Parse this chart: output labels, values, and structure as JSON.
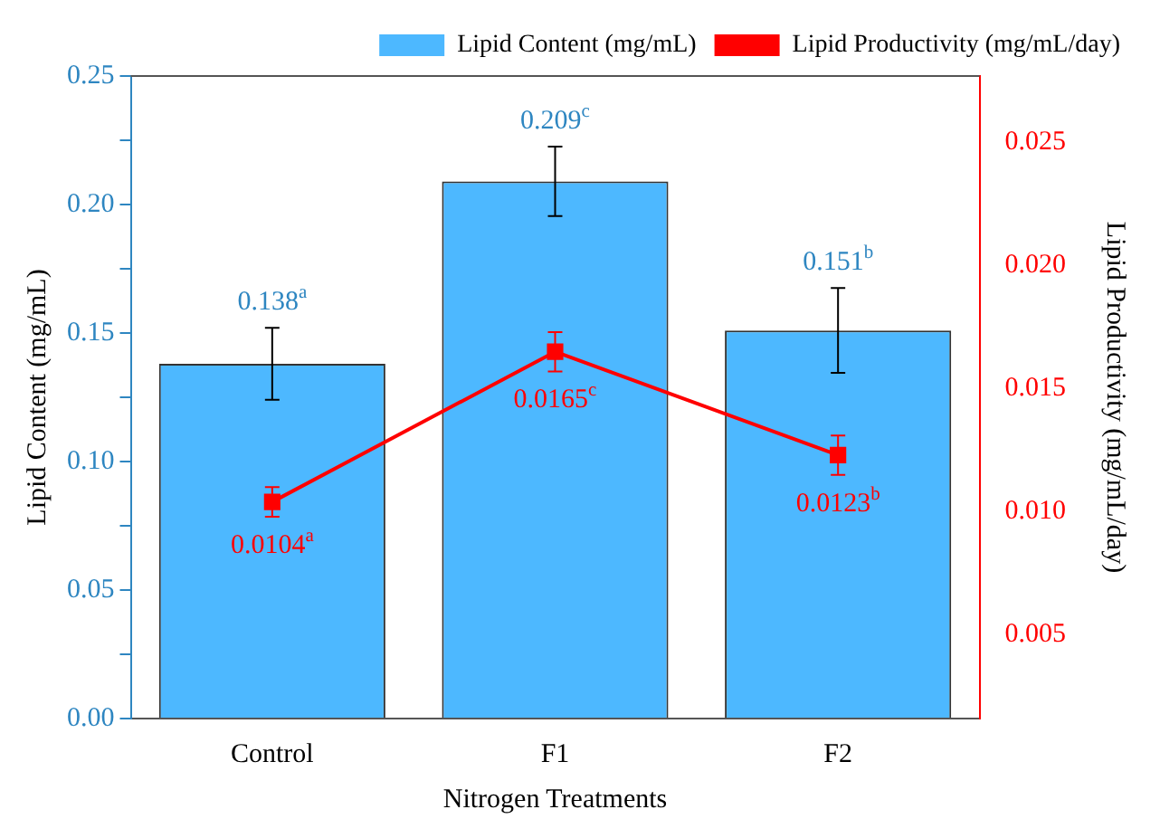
{
  "chart_data": {
    "type": "bar",
    "xlabel": "Nitrogen Treatments",
    "ylabel": "Lipid Content (mg/mL)",
    "y2label": "Lipid Productivity (mg/mL/day)",
    "categories": [
      "Control",
      "F1",
      "F2"
    ],
    "series": [
      {
        "name": "Lipid Content (mg/mL)",
        "color": "#4db8ff",
        "values": [
          0.138,
          0.209,
          0.151
        ],
        "errors": [
          0.014,
          0.0135,
          0.0165
        ],
        "value_labels": [
          "0.138$^{a}$",
          "0.209$^{c}$",
          "0.151$^{b}$"
        ]
      },
      {
        "name": "Lipid Productivity (mg/mL/day)",
        "type": "line",
        "axis": "y2",
        "color": "#ff0000",
        "marker": "square",
        "values": [
          0.0104,
          0.0165,
          0.0123
        ],
        "errors": [
          0.0006,
          0.0008,
          0.0008
        ],
        "value_labels": [
          "0.0104$^{a}$",
          "0.0165$^{c}$",
          "0.0123$^{b}$"
        ]
      }
    ],
    "ylim": [
      0,
      0.25
    ],
    "yticks": [
      {
        "value": 0,
        "label": "0.00"
      },
      {
        "value": 0.025,
        "label": null
      },
      {
        "value": 0.05,
        "label": "0.05"
      },
      {
        "value": 0.075,
        "label": null
      },
      {
        "value": 0.1,
        "label": "0.10"
      },
      {
        "value": 0.125,
        "label": null
      },
      {
        "value": 0.15,
        "label": "0.15"
      },
      {
        "value": 0.175,
        "label": null
      },
      {
        "value": 0.2,
        "label": "0.20"
      },
      {
        "value": 0.225,
        "label": null
      },
      {
        "value": 0.25,
        "label": "0.25"
      }
    ],
    "y2lim": [
      0.0016,
      0.0277
    ],
    "y2ticks": [
      0.005,
      {
        "value": 0.01,
        "label": "0.010"
      },
      0.015,
      {
        "value": 0.02,
        "label": "0.020"
      },
      0.025
    ],
    "grid": false,
    "legend": "top right"
  }
}
